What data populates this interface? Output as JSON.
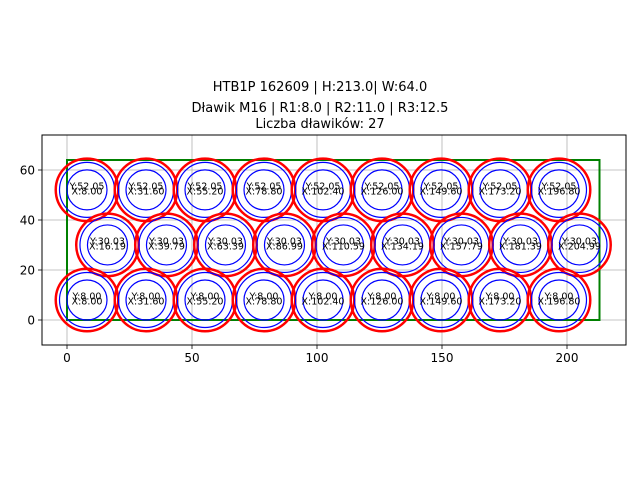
{
  "title": {
    "line1": "HTB1P 162609 | H:213.0| W:64.0",
    "line2": "Dławik M16 | R1:8.0 | R2:11.0 | R3:12.5",
    "line3": "Liczba dławików: 27"
  },
  "colors": {
    "outer_circle": "#ff0000",
    "inner_circles": "#0000ff",
    "board_outline": "#008000",
    "grid": "#b0b0b0",
    "axes": "#000000"
  },
  "chart_data": {
    "type": "scatter",
    "title": "HTB1P 162609 | H:213.0| W:64.0 / Dławik M16 | R1:8.0 | R2:11.0 | R3:12.5 / Liczba dławików: 27",
    "xlabel": "",
    "ylabel": "",
    "xlim": [
      -10,
      223
    ],
    "ylim": [
      -10,
      74
    ],
    "xticks": [
      0,
      50,
      100,
      150,
      200
    ],
    "yticks": [
      0,
      20,
      40,
      60
    ],
    "grid": true,
    "rectangle": {
      "x": 0,
      "y": 0,
      "width": 213.0,
      "height": 64.0
    },
    "radii": {
      "r1": 8.0,
      "r2": 11.0,
      "r3": 12.5
    },
    "count": 27,
    "points": [
      {
        "x": 8.0,
        "y": 52.05
      },
      {
        "x": 31.6,
        "y": 52.05
      },
      {
        "x": 55.2,
        "y": 52.05
      },
      {
        "x": 78.8,
        "y": 52.05
      },
      {
        "x": 102.4,
        "y": 52.05
      },
      {
        "x": 126.0,
        "y": 52.05
      },
      {
        "x": 149.6,
        "y": 52.05
      },
      {
        "x": 173.2,
        "y": 52.05
      },
      {
        "x": 196.8,
        "y": 52.05
      },
      {
        "x": 16.19,
        "y": 30.03
      },
      {
        "x": 39.79,
        "y": 30.03
      },
      {
        "x": 63.39,
        "y": 30.03
      },
      {
        "x": 86.99,
        "y": 30.03
      },
      {
        "x": 110.59,
        "y": 30.03
      },
      {
        "x": 134.19,
        "y": 30.03
      },
      {
        "x": 157.79,
        "y": 30.03
      },
      {
        "x": 181.39,
        "y": 30.03
      },
      {
        "x": 204.99,
        "y": 30.03
      },
      {
        "x": 8.0,
        "y": 8.0
      },
      {
        "x": 31.6,
        "y": 8.0
      },
      {
        "x": 55.2,
        "y": 8.0
      },
      {
        "x": 78.8,
        "y": 8.0
      },
      {
        "x": 102.4,
        "y": 8.0
      },
      {
        "x": 126.0,
        "y": 8.0
      },
      {
        "x": 149.6,
        "y": 8.0
      },
      {
        "x": 173.2,
        "y": 8.0
      },
      {
        "x": 196.8,
        "y": 8.0
      }
    ]
  }
}
